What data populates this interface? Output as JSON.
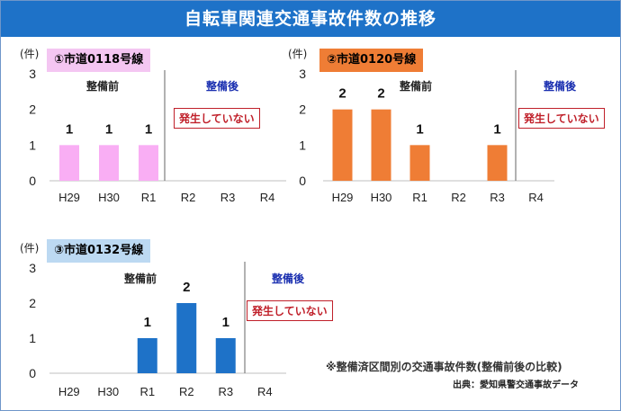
{
  "title": "自転車関連交通事故件数の推移",
  "unit": "(件)",
  "before_label": "整備前",
  "after_label": "整備後",
  "none_label": "発生していない",
  "note": "※整備済区間別の交通事故件数(整備前後の比較)",
  "source": "出典：愛知県警交通事故データ",
  "colors": {
    "title_bg": "#1e72c8",
    "after_text": "#1a2fb0",
    "none_text": "#c0202a"
  },
  "chart_data": [
    {
      "type": "bar",
      "title": "①市道0118号線",
      "label_bg": "#f4c6f2",
      "bar_color": "#f9aef4",
      "categories": [
        "H29",
        "H30",
        "R1",
        "R2",
        "R3",
        "R4"
      ],
      "values": [
        1,
        1,
        1,
        null,
        null,
        null
      ],
      "ylim": [
        0,
        3
      ],
      "yticks": [
        "0",
        "1",
        "2",
        "3"
      ],
      "divider_after_index": 2
    },
    {
      "type": "bar",
      "title": "②市道0120号線",
      "label_bg": "#ef7d35",
      "bar_color": "#ef7d35",
      "categories": [
        "H29",
        "H30",
        "R1",
        "R2",
        "R3",
        "R4"
      ],
      "values": [
        2,
        2,
        1,
        null,
        1,
        null
      ],
      "ylim": [
        0,
        3
      ],
      "yticks": [
        "0",
        "1",
        "2",
        "3"
      ],
      "divider_after_index": 4
    },
    {
      "type": "bar",
      "title": "③市道0132号線",
      "label_bg": "#bcd9f2",
      "bar_color": "#1e72c8",
      "categories": [
        "H29",
        "H30",
        "R1",
        "R2",
        "R3",
        "R4"
      ],
      "values": [
        null,
        null,
        1,
        2,
        1,
        null
      ],
      "ylim": [
        0,
        3
      ],
      "yticks": [
        "0",
        "1",
        "2",
        "3"
      ],
      "divider_after_index": 4
    }
  ]
}
